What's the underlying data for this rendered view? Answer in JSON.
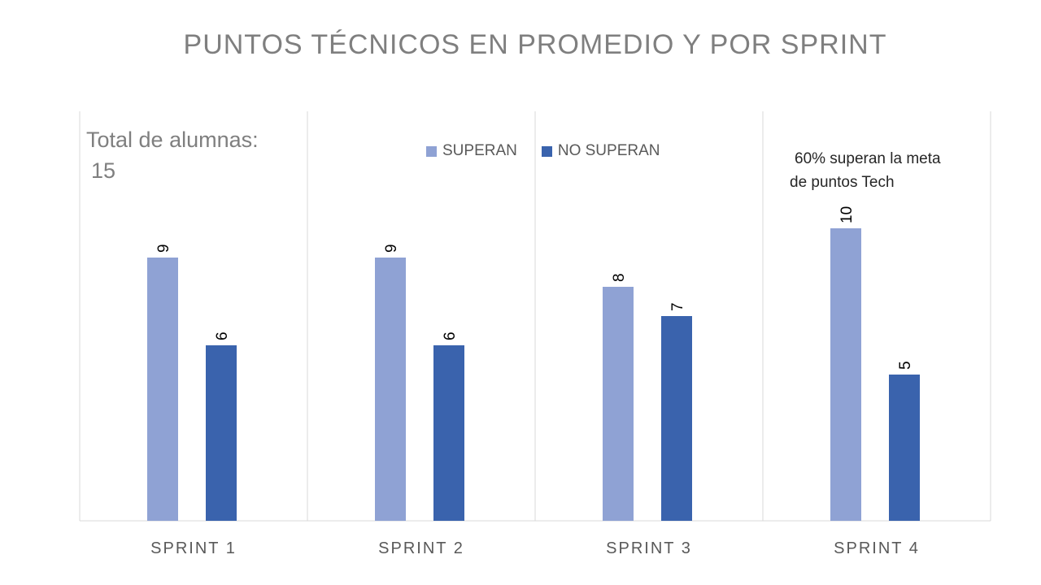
{
  "chart_data": {
    "type": "bar",
    "title": "PUNTOS TÉCNICOS EN PROMEDIO Y POR SPRINT",
    "categories": [
      "SPRINT 1",
      "SPRINT 2",
      "SPRINT 3",
      "SPRINT 4"
    ],
    "series": [
      {
        "name": "SUPERAN",
        "values": [
          9,
          9,
          8,
          10
        ],
        "color": "#8fa2d4"
      },
      {
        "name": "NO SUPERAN",
        "values": [
          6,
          6,
          7,
          5
        ],
        "color": "#3a63ad"
      }
    ],
    "ylim": [
      0,
      14
    ],
    "grid": false,
    "legend_position": "top-center",
    "data_labels": true,
    "annotations": {
      "total_line1": "Total de alumnas:",
      "total_line2": "15",
      "pct_line1": "60%  superan la meta",
      "pct_line2": "de puntos Tech"
    }
  }
}
